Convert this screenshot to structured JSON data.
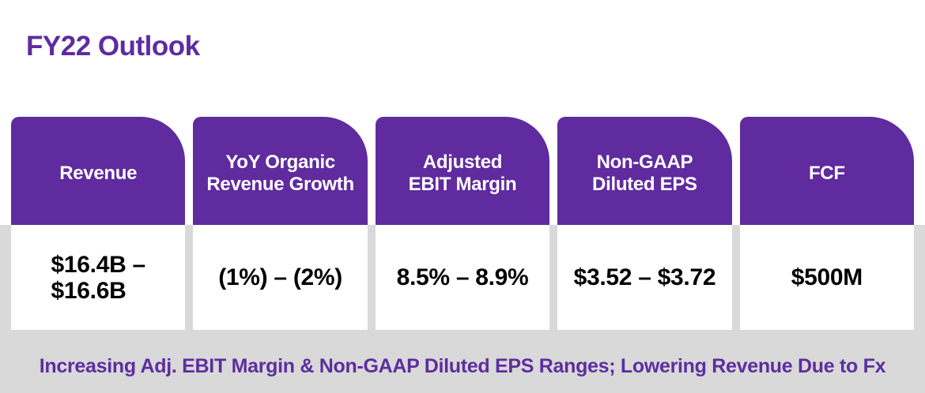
{
  "page": {
    "title": "FY22 Outlook",
    "footer": "Increasing Adj. EBIT Margin & Non-GAAP Diluted EPS Ranges; Lowering Revenue Due to Fx"
  },
  "colors": {
    "accent_purple": "#5F2B9F",
    "footer_text_purple": "#5C2E9E",
    "band_gray": "#D9D9D9",
    "header_text": "#FFFFFF",
    "value_text": "#000000"
  },
  "cards": [
    {
      "label": "Revenue",
      "value": "$16.4B –\n$16.6B"
    },
    {
      "label": "YoY Organic\nRevenue Growth",
      "value": "(1%) – (2%)"
    },
    {
      "label": "Adjusted\nEBIT Margin",
      "value": "8.5% – 8.9%"
    },
    {
      "label": "Non-GAAP\nDiluted EPS",
      "value": "$3.52 – $3.72"
    },
    {
      "label": "FCF",
      "value": "$500M"
    }
  ]
}
